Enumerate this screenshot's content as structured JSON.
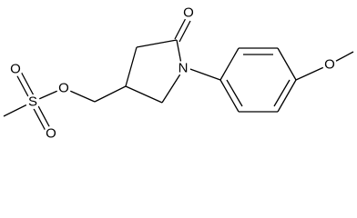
{
  "atom_labels": [
    "O",
    "N",
    "O",
    "O",
    "S",
    "O",
    "O"
  ]
}
